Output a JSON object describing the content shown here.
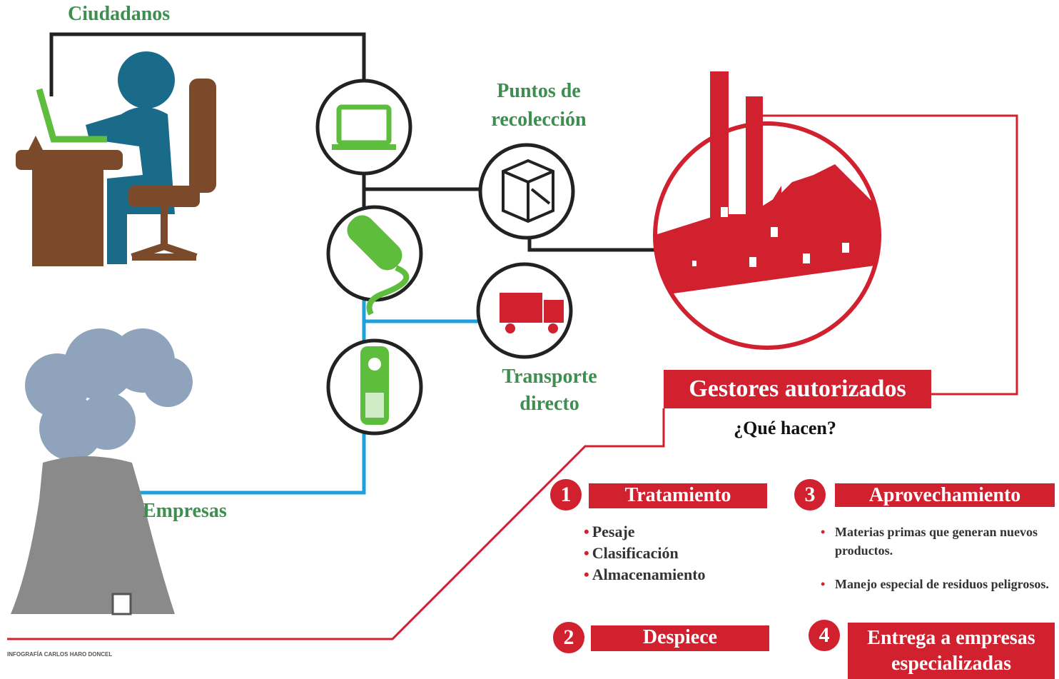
{
  "citizens": "Ciudadanos",
  "companies": "Empresas",
  "collection_points": {
    "lines": [
      "Puntos de",
      "recolección"
    ]
  },
  "direct_transport": {
    "lines": [
      "Transporte",
      "directo"
    ]
  },
  "managers": {
    "title": "Gestores autorizados",
    "question": "¿Qué hacen?"
  },
  "steps": [
    {
      "number": 1,
      "title": "Tratamiento",
      "items": [
        "Pesaje",
        "Clasificación",
        "Almacenamiento"
      ]
    },
    {
      "number": 2,
      "title": "Despiece"
    },
    {
      "number": 3,
      "title": "Aprovechamiento",
      "items": [
        "Materias primas que generan nuevos productos.",
        "Manejo especial de residuos peligrosos."
      ]
    },
    {
      "number": 4,
      "title": "Entrega a empresas especializadas"
    }
  ],
  "credit": "INFOGRAFÍA CARLOS HARO DONCEL"
}
